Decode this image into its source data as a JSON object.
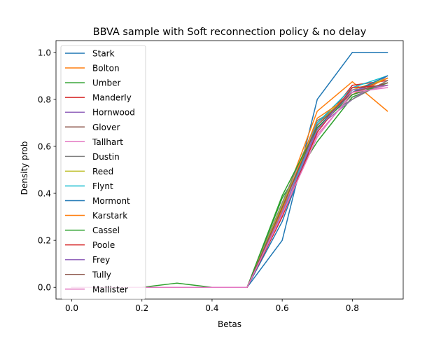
{
  "chart_data": {
    "type": "line",
    "title": "BBVA sample with Soft reconnection policy & no delay",
    "xlabel": "Betas",
    "ylabel": "Density prob",
    "x": [
      0.0,
      0.1,
      0.2,
      0.3,
      0.4,
      0.5,
      0.6,
      0.7,
      0.8,
      0.9
    ],
    "xlim": [
      -0.045,
      0.945
    ],
    "ylim": [
      -0.05,
      1.05
    ],
    "xticks": [
      "0.0",
      "0.2",
      "0.4",
      "0.6",
      "0.8"
    ],
    "xtick_values": [
      0.0,
      0.2,
      0.4,
      0.6,
      0.8
    ],
    "yticks": [
      "0.0",
      "0.2",
      "0.4",
      "0.6",
      "0.8",
      "1.0"
    ],
    "ytick_values": [
      0.0,
      0.2,
      0.4,
      0.6,
      0.8,
      1.0
    ],
    "grid": false,
    "legend_position": "upper-left",
    "series": [
      {
        "name": "Stark",
        "color": "#1f77b4",
        "values": [
          0.0,
          0.0,
          0.0,
          0.0,
          0.0,
          0.0,
          0.2,
          0.8,
          1.0,
          1.0
        ]
      },
      {
        "name": "Bolton",
        "color": "#ff7f0e",
        "values": [
          0.0,
          0.0,
          0.0,
          0.0,
          0.0,
          0.0,
          0.35,
          0.75,
          0.875,
          0.75
        ]
      },
      {
        "name": "Umber",
        "color": "#2ca02c",
        "values": [
          0.0,
          0.0,
          0.0,
          0.018,
          0.0,
          0.0,
          0.38,
          0.62,
          0.81,
          0.87
        ]
      },
      {
        "name": "Manderly",
        "color": "#d62728",
        "values": [
          0.0,
          0.0,
          0.0,
          0.0,
          0.0,
          0.0,
          0.3,
          0.67,
          0.86,
          0.88
        ]
      },
      {
        "name": "Hornwood",
        "color": "#9467bd",
        "values": [
          0.0,
          0.0,
          0.0,
          0.0,
          0.0,
          0.0,
          0.32,
          0.68,
          0.8,
          0.9
        ]
      },
      {
        "name": "Glover",
        "color": "#8c564b",
        "values": [
          0.0,
          0.0,
          0.0,
          0.0,
          0.0,
          0.0,
          0.33,
          0.7,
          0.83,
          0.89
        ]
      },
      {
        "name": "Tallhart",
        "color": "#e377c2",
        "values": [
          0.0,
          0.0,
          0.0,
          0.0,
          0.0,
          0.0,
          0.34,
          0.65,
          0.82,
          0.86
        ]
      },
      {
        "name": "Dustin",
        "color": "#7f7f7f",
        "values": [
          0.0,
          0.0,
          0.0,
          0.0,
          0.0,
          0.0,
          0.36,
          0.71,
          0.8,
          0.88
        ]
      },
      {
        "name": "Reed",
        "color": "#bcbd22",
        "values": [
          0.0,
          0.0,
          0.0,
          0.0,
          0.0,
          0.0,
          0.35,
          0.69,
          0.84,
          0.89
        ]
      },
      {
        "name": "Flynt",
        "color": "#17becf",
        "values": [
          0.0,
          0.0,
          0.0,
          0.0,
          0.0,
          0.0,
          0.31,
          0.7,
          0.85,
          0.9
        ]
      },
      {
        "name": "Mormont",
        "color": "#1f77b4",
        "values": [
          0.0,
          0.0,
          0.0,
          0.0,
          0.0,
          0.0,
          0.28,
          0.68,
          0.83,
          0.9
        ]
      },
      {
        "name": "Karstark",
        "color": "#ff7f0e",
        "values": [
          0.0,
          0.0,
          0.0,
          0.0,
          0.0,
          0.0,
          0.33,
          0.72,
          0.82,
          0.89
        ]
      },
      {
        "name": "Cassel",
        "color": "#2ca02c",
        "values": [
          0.0,
          0.0,
          0.0,
          0.0,
          0.0,
          0.0,
          0.39,
          0.68,
          0.82,
          0.87
        ]
      },
      {
        "name": "Poole",
        "color": "#d62728",
        "values": [
          0.0,
          0.0,
          0.0,
          0.0,
          0.0,
          0.0,
          0.3,
          0.66,
          0.85,
          0.86
        ]
      },
      {
        "name": "Frey",
        "color": "#9467bd",
        "values": [
          0.0,
          0.0,
          0.0,
          0.0,
          0.0,
          0.0,
          0.32,
          0.67,
          0.84,
          0.86
        ]
      },
      {
        "name": "Tully",
        "color": "#8c564b",
        "values": [
          0.0,
          0.0,
          0.0,
          0.0,
          0.0,
          0.0,
          0.34,
          0.69,
          0.83,
          0.87
        ]
      },
      {
        "name": "Mallister",
        "color": "#e377c2",
        "values": [
          0.0,
          0.0,
          0.0,
          0.0,
          0.0,
          0.0,
          0.31,
          0.64,
          0.83,
          0.85
        ]
      }
    ]
  }
}
